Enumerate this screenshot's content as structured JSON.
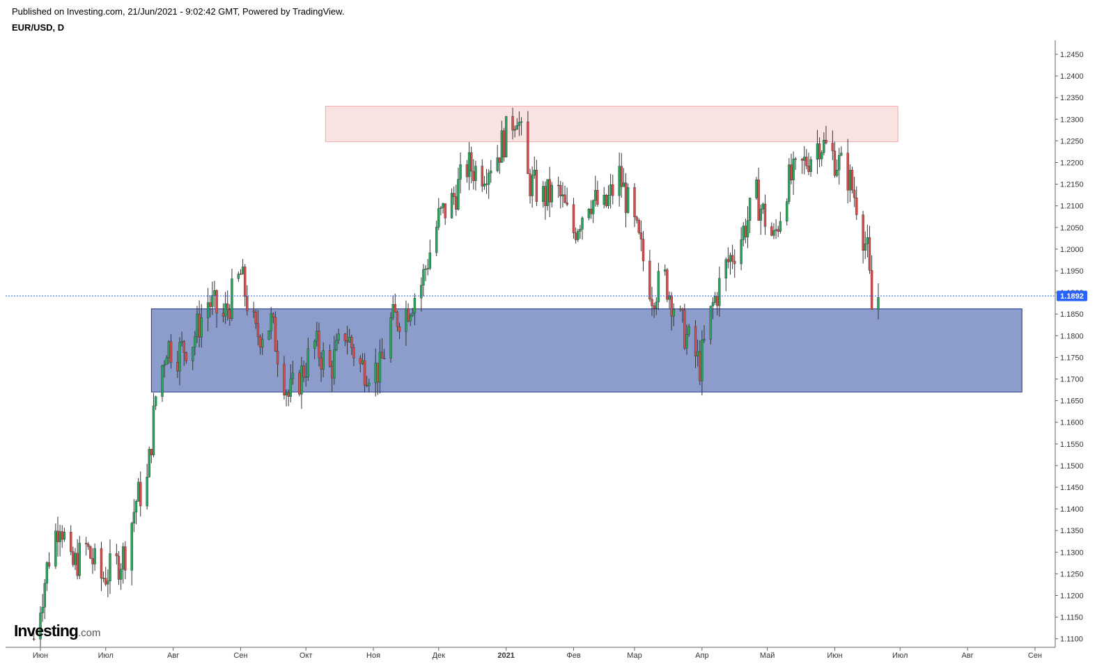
{
  "header": {
    "published": "Published on Investing.com, 21/Jun/2021 - 9:02:42 GMT, Powered by TradingView.",
    "symbol": "EUR/USD, D"
  },
  "logo": {
    "main": "Investing",
    "domain": ".com"
  },
  "colors": {
    "up": "#26a65b",
    "down": "#d64b4b",
    "resistance_zone": "#f9e2e2",
    "support_zone": "#8c9dcc",
    "price_line": "#2962ff"
  },
  "chart_data": {
    "type": "candlestick",
    "symbol": "EUR/USD",
    "timeframe": "D",
    "ylim": [
      1.107,
      1.2465
    ],
    "y_ticks": [
      "1.2450",
      "1.2400",
      "1.2350",
      "1.2300",
      "1.2250",
      "1.2200",
      "1.2150",
      "1.2100",
      "1.2050",
      "1.2000",
      "1.1950",
      "1.1900",
      "1.1850",
      "1.1800",
      "1.1750",
      "1.1700",
      "1.1650",
      "1.1600",
      "1.1550",
      "1.1500",
      "1.1450",
      "1.1400",
      "1.1350",
      "1.1300",
      "1.1250",
      "1.1200",
      "1.1150",
      "1.1100"
    ],
    "x_labels": [
      {
        "label": "Июн",
        "date": "2020-06-01"
      },
      {
        "label": "Июл",
        "date": "2020-07-01"
      },
      {
        "label": "Авг",
        "date": "2020-08-01"
      },
      {
        "label": "Сен",
        "date": "2020-09-01"
      },
      {
        "label": "Окт",
        "date": "2020-10-01"
      },
      {
        "label": "Ноя",
        "date": "2020-11-01"
      },
      {
        "label": "Дек",
        "date": "2020-12-01"
      },
      {
        "label": "2021",
        "date": "2021-01-01"
      },
      {
        "label": "Фев",
        "date": "2021-02-01"
      },
      {
        "label": "Мар",
        "date": "2021-03-01"
      },
      {
        "label": "Апр",
        "date": "2021-04-01"
      },
      {
        "label": "Май",
        "date": "2021-05-01"
      },
      {
        "label": "Июн",
        "date": "2021-06-01"
      },
      {
        "label": "Июл",
        "date": "2021-07-01"
      },
      {
        "label": "Авг",
        "date": "2021-08-01"
      },
      {
        "label": "Сен",
        "date": "2021-09-01"
      }
    ],
    "last_price": "1.1892",
    "zones": [
      {
        "kind": "resistance",
        "from": "2020-10-10",
        "to": "2021-06-30",
        "low": 1.2248,
        "high": 1.233
      },
      {
        "kind": "support",
        "from": "2020-07-22",
        "to": "2021-08-26",
        "low": 1.167,
        "high": 1.1862
      }
    ],
    "closes": [
      {
        "date": "2020-05-29",
        "value": 1.11
      },
      {
        "date": "2020-06-05",
        "value": 1.129
      },
      {
        "date": "2020-06-10",
        "value": 1.138
      },
      {
        "date": "2020-06-15",
        "value": 1.126
      },
      {
        "date": "2020-06-22",
        "value": 1.131
      },
      {
        "date": "2020-06-29",
        "value": 1.124
      },
      {
        "date": "2020-07-06",
        "value": 1.127
      },
      {
        "date": "2020-07-10",
        "value": 1.13
      },
      {
        "date": "2020-07-15",
        "value": 1.142
      },
      {
        "date": "2020-07-20",
        "value": 1.146
      },
      {
        "date": "2020-07-24",
        "value": 1.166
      },
      {
        "date": "2020-07-29",
        "value": 1.178
      },
      {
        "date": "2020-08-03",
        "value": 1.176
      },
      {
        "date": "2020-08-10",
        "value": 1.179
      },
      {
        "date": "2020-08-17",
        "value": 1.188
      },
      {
        "date": "2020-08-24",
        "value": 1.184
      },
      {
        "date": "2020-09-01",
        "value": 1.194
      },
      {
        "date": "2020-09-08",
        "value": 1.18
      },
      {
        "date": "2020-09-15",
        "value": 1.183
      },
      {
        "date": "2020-09-23",
        "value": 1.166
      },
      {
        "date": "2020-09-28",
        "value": 1.17
      },
      {
        "date": "2020-10-05",
        "value": 1.178
      },
      {
        "date": "2020-10-12",
        "value": 1.172
      },
      {
        "date": "2020-10-19",
        "value": 1.181
      },
      {
        "date": "2020-10-26",
        "value": 1.173
      },
      {
        "date": "2020-11-04",
        "value": 1.172
      },
      {
        "date": "2020-11-09",
        "value": 1.183
      },
      {
        "date": "2020-11-16",
        "value": 1.186
      },
      {
        "date": "2020-11-23",
        "value": 1.192
      },
      {
        "date": "2020-12-01",
        "value": 1.207
      },
      {
        "date": "2020-12-07",
        "value": 1.211
      },
      {
        "date": "2020-12-14",
        "value": 1.219
      },
      {
        "date": "2020-12-21",
        "value": 1.218
      },
      {
        "date": "2020-12-28",
        "value": 1.222
      },
      {
        "date": "2021-01-06",
        "value": 1.232
      },
      {
        "date": "2021-01-11",
        "value": 1.216
      },
      {
        "date": "2021-01-18",
        "value": 1.212
      },
      {
        "date": "2021-01-25",
        "value": 1.213
      },
      {
        "date": "2021-02-01",
        "value": 1.204
      },
      {
        "date": "2021-02-08",
        "value": 1.212
      },
      {
        "date": "2021-02-15",
        "value": 1.209
      },
      {
        "date": "2021-02-22",
        "value": 1.217
      },
      {
        "date": "2021-03-01",
        "value": 1.205
      },
      {
        "date": "2021-03-09",
        "value": 1.19
      },
      {
        "date": "2021-03-15",
        "value": 1.193
      },
      {
        "date": "2021-03-22",
        "value": 1.183
      },
      {
        "date": "2021-03-31",
        "value": 1.173
      },
      {
        "date": "2021-04-06",
        "value": 1.187
      },
      {
        "date": "2021-04-12",
        "value": 1.196
      },
      {
        "date": "2021-04-19",
        "value": 1.203
      },
      {
        "date": "2021-04-26",
        "value": 1.212
      },
      {
        "date": "2021-05-04",
        "value": 1.202
      },
      {
        "date": "2021-05-10",
        "value": 1.215
      },
      {
        "date": "2021-05-17",
        "value": 1.219
      },
      {
        "date": "2021-05-25",
        "value": 1.225
      },
      {
        "date": "2021-06-01",
        "value": 1.221
      },
      {
        "date": "2021-06-07",
        "value": 1.217
      },
      {
        "date": "2021-06-11",
        "value": 1.211
      },
      {
        "date": "2021-06-16",
        "value": 1.199
      },
      {
        "date": "2021-06-18",
        "value": 1.186
      },
      {
        "date": "2021-06-21",
        "value": 1.1892
      }
    ]
  }
}
